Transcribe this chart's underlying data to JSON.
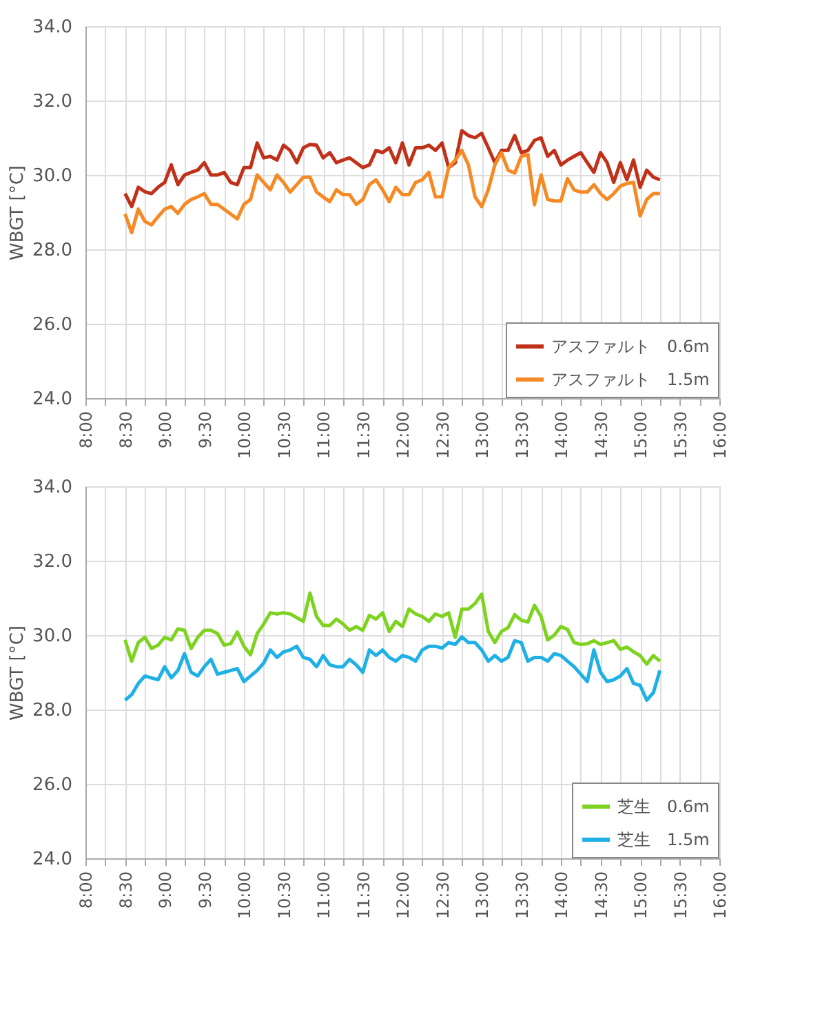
{
  "chart_data": [
    {
      "type": "line",
      "ylabel": "WBGT [°C]",
      "x": [
        8.5,
        8.5833,
        8.6667,
        8.75,
        8.8333,
        8.9167,
        9,
        9.0833,
        9.1667,
        9.25,
        9.3333,
        9.4167,
        9.5,
        9.5833,
        9.6667,
        9.75,
        9.8333,
        9.9167,
        10,
        10.0833,
        10.1667,
        10.25,
        10.3333,
        10.4167,
        10.5,
        10.5833,
        10.6667,
        10.75,
        10.8333,
        10.9167,
        11,
        11.0833,
        11.1667,
        11.25,
        11.3333,
        11.4167,
        11.5,
        11.5833,
        11.6667,
        11.75,
        11.8333,
        11.9167,
        12,
        12.0833,
        12.1667,
        12.25,
        12.3333,
        12.4167,
        12.5,
        12.5833,
        12.6667,
        12.75,
        12.8333,
        12.9167,
        13,
        13.0833,
        13.1667,
        13.25,
        13.3333,
        13.4167,
        13.5,
        13.5833,
        13.6667,
        13.75,
        13.8333,
        13.9167,
        14,
        14.0833,
        14.1667,
        14.25,
        14.3333,
        14.4167,
        14.5,
        14.5833,
        14.6667,
        14.75,
        14.8333,
        14.9167,
        15,
        15.0833,
        15.1667,
        15.25
      ],
      "series": [
        {
          "name": "アスファルト　0.6m",
          "color": "#c0311a",
          "values": [
            29.5,
            29.15,
            29.67,
            29.55,
            29.5,
            29.67,
            29.8,
            30.27,
            29.74,
            30.0,
            30.07,
            30.13,
            30.33,
            30.0,
            30.0,
            30.07,
            29.8,
            29.74,
            30.2,
            30.2,
            30.86,
            30.46,
            30.5,
            30.4,
            30.8,
            30.66,
            30.33,
            30.73,
            30.82,
            30.8,
            30.46,
            30.6,
            30.33,
            30.4,
            30.46,
            30.33,
            30.2,
            30.27,
            30.66,
            30.6,
            30.73,
            30.33,
            30.86,
            30.27,
            30.73,
            30.73,
            30.8,
            30.66,
            30.86,
            30.2,
            30.33,
            31.19,
            31.06,
            31.0,
            31.12,
            30.73,
            30.33,
            30.66,
            30.66,
            31.06,
            30.6,
            30.66,
            30.93,
            31.0,
            30.5,
            30.66,
            30.27,
            30.4,
            30.5,
            30.6,
            30.33,
            30.07,
            30.6,
            30.33,
            29.8,
            30.33,
            29.87,
            30.4,
            29.67,
            30.13,
            29.94,
            29.87
          ]
        },
        {
          "name": "アスファルト　1.5m",
          "color": "#f58a25",
          "values": [
            28.95,
            28.45,
            29.08,
            28.75,
            28.66,
            28.88,
            29.08,
            29.15,
            28.97,
            29.21,
            29.34,
            29.41,
            29.5,
            29.21,
            29.21,
            29.08,
            28.95,
            28.82,
            29.21,
            29.34,
            30.0,
            29.8,
            29.6,
            30.0,
            29.8,
            29.54,
            29.74,
            29.94,
            29.94,
            29.54,
            29.41,
            29.28,
            29.6,
            29.47,
            29.47,
            29.21,
            29.34,
            29.74,
            29.87,
            29.6,
            29.28,
            29.67,
            29.47,
            29.47,
            29.8,
            29.87,
            30.07,
            29.41,
            29.41,
            30.2,
            30.4,
            30.66,
            30.27,
            29.41,
            29.15,
            29.6,
            30.27,
            30.6,
            30.13,
            30.05,
            30.5,
            30.55,
            29.2,
            30.0,
            29.34,
            29.3,
            29.3,
            29.9,
            29.6,
            29.54,
            29.54,
            29.74,
            29.5,
            29.34,
            29.5,
            29.7,
            29.77,
            29.8,
            28.9,
            29.34,
            29.5,
            29.5
          ]
        }
      ],
      "ylim": [
        24,
        34
      ],
      "yticks": [
        {
          "value": 24,
          "label": "24.0"
        },
        {
          "value": 26,
          "label": "26.0"
        },
        {
          "value": 28,
          "label": "28.0"
        },
        {
          "value": 30,
          "label": "30.0"
        },
        {
          "value": 32,
          "label": "32.0"
        },
        {
          "value": 34,
          "label": "34.0"
        }
      ],
      "xlim": [
        8,
        16
      ],
      "xticks": [
        {
          "value": 8,
          "label": "8:00"
        },
        {
          "value": 8.25,
          "label": null
        },
        {
          "value": 8.5,
          "label": "8:30"
        },
        {
          "value": 8.75,
          "label": null
        },
        {
          "value": 9,
          "label": "9:00"
        },
        {
          "value": 9.25,
          "label": null
        },
        {
          "value": 9.5,
          "label": "9:30"
        },
        {
          "value": 9.75,
          "label": null
        },
        {
          "value": 10,
          "label": "10:00"
        },
        {
          "value": 10.25,
          "label": null
        },
        {
          "value": 10.5,
          "label": "10:30"
        },
        {
          "value": 10.75,
          "label": null
        },
        {
          "value": 11,
          "label": "11:00"
        },
        {
          "value": 11.25,
          "label": null
        },
        {
          "value": 11.5,
          "label": "11:30"
        },
        {
          "value": 11.75,
          "label": null
        },
        {
          "value": 12,
          "label": "12:00"
        },
        {
          "value": 12.25,
          "label": null
        },
        {
          "value": 12.5,
          "label": "12:30"
        },
        {
          "value": 12.75,
          "label": null
        },
        {
          "value": 13,
          "label": "13:00"
        },
        {
          "value": 13.25,
          "label": null
        },
        {
          "value": 13.5,
          "label": "13:30"
        },
        {
          "value": 13.75,
          "label": null
        },
        {
          "value": 14,
          "label": "14:00"
        },
        {
          "value": 14.25,
          "label": null
        },
        {
          "value": 14.5,
          "label": "14:30"
        },
        {
          "value": 14.75,
          "label": null
        },
        {
          "value": 15,
          "label": "15:00"
        },
        {
          "value": 15.25,
          "label": null
        },
        {
          "value": 15.5,
          "label": "15:30"
        },
        {
          "value": 15.75,
          "label": null
        },
        {
          "value": 16,
          "label": "16:00"
        }
      ],
      "grid": true,
      "legend": "bottom right",
      "marker": "none",
      "line_style": "solid"
    },
    {
      "type": "line",
      "ylabel": "WBGT [°C]",
      "x": [
        8.5,
        8.5833,
        8.6667,
        8.75,
        8.8333,
        8.9167,
        9,
        9.0833,
        9.1667,
        9.25,
        9.3333,
        9.4167,
        9.5,
        9.5833,
        9.6667,
        9.75,
        9.8333,
        9.9167,
        10,
        10.0833,
        10.1667,
        10.25,
        10.3333,
        10.4167,
        10.5,
        10.5833,
        10.6667,
        10.75,
        10.8333,
        10.9167,
        11,
        11.0833,
        11.1667,
        11.25,
        11.3333,
        11.4167,
        11.5,
        11.5833,
        11.6667,
        11.75,
        11.8333,
        11.9167,
        12,
        12.0833,
        12.1667,
        12.25,
        12.3333,
        12.4167,
        12.5,
        12.5833,
        12.6667,
        12.75,
        12.8333,
        12.9167,
        13,
        13.0833,
        13.1667,
        13.25,
        13.3333,
        13.4167,
        13.5,
        13.5833,
        13.6667,
        13.75,
        13.8333,
        13.9167,
        14,
        14.0833,
        14.1667,
        14.25,
        14.3333,
        14.4167,
        14.5,
        14.5833,
        14.6667,
        14.75,
        14.8333,
        14.9167,
        15,
        15.0833,
        15.1667,
        15.25
      ],
      "series": [
        {
          "name": "芝生　0.6m",
          "color": "#7ed321",
          "values": [
            29.87,
            29.3,
            29.8,
            29.94,
            29.64,
            29.73,
            29.94,
            29.87,
            30.17,
            30.13,
            29.64,
            29.94,
            30.13,
            30.13,
            30.04,
            29.73,
            29.77,
            30.08,
            29.7,
            29.47,
            30.04,
            30.3,
            30.6,
            30.57,
            30.6,
            30.57,
            30.47,
            30.37,
            31.13,
            30.5,
            30.26,
            30.26,
            30.43,
            30.3,
            30.13,
            30.23,
            30.13,
            30.53,
            30.43,
            30.6,
            30.1,
            30.37,
            30.23,
            30.7,
            30.57,
            30.5,
            30.37,
            30.57,
            30.5,
            30.6,
            29.94,
            30.7,
            30.7,
            30.85,
            31.1,
            30.1,
            29.8,
            30.1,
            30.2,
            30.55,
            30.4,
            30.35,
            30.8,
            30.5,
            29.87,
            30.0,
            30.23,
            30.15,
            29.8,
            29.75,
            29.77,
            29.85,
            29.75,
            29.8,
            29.85,
            29.62,
            29.68,
            29.55,
            29.45,
            29.22,
            29.45,
            29.3
          ]
        },
        {
          "name": "芝生　1.5m",
          "color": "#1fb0e6",
          "values": [
            28.25,
            28.4,
            28.7,
            28.9,
            28.85,
            28.8,
            29.15,
            28.85,
            29.05,
            29.5,
            29.0,
            28.9,
            29.15,
            29.35,
            28.95,
            29.0,
            29.05,
            29.1,
            28.75,
            28.9,
            29.05,
            29.25,
            29.6,
            29.4,
            29.55,
            29.6,
            29.7,
            29.4,
            29.35,
            29.15,
            29.45,
            29.2,
            29.15,
            29.15,
            29.35,
            29.2,
            29.0,
            29.6,
            29.45,
            29.6,
            29.4,
            29.3,
            29.45,
            29.4,
            29.3,
            29.6,
            29.7,
            29.7,
            29.65,
            29.8,
            29.75,
            29.95,
            29.8,
            29.8,
            29.6,
            29.3,
            29.45,
            29.3,
            29.4,
            29.85,
            29.8,
            29.3,
            29.4,
            29.4,
            29.3,
            29.5,
            29.45,
            29.3,
            29.15,
            28.95,
            28.75,
            29.6,
            29.0,
            28.75,
            28.8,
            28.9,
            29.1,
            28.7,
            28.65,
            28.25,
            28.45,
            29.05
          ]
        }
      ],
      "ylim": [
        24,
        34
      ],
      "yticks": [
        {
          "value": 24,
          "label": "24.0"
        },
        {
          "value": 26,
          "label": "26.0"
        },
        {
          "value": 28,
          "label": "28.0"
        },
        {
          "value": 30,
          "label": "30.0"
        },
        {
          "value": 32,
          "label": "32.0"
        },
        {
          "value": 34,
          "label": "34.0"
        }
      ],
      "xlim": [
        8,
        16
      ],
      "xticks": [
        {
          "value": 8,
          "label": "8:00"
        },
        {
          "value": 8.25,
          "label": null
        },
        {
          "value": 8.5,
          "label": "8:30"
        },
        {
          "value": 8.75,
          "label": null
        },
        {
          "value": 9,
          "label": "9:00"
        },
        {
          "value": 9.25,
          "label": null
        },
        {
          "value": 9.5,
          "label": "9:30"
        },
        {
          "value": 9.75,
          "label": null
        },
        {
          "value": 10,
          "label": "10:00"
        },
        {
          "value": 10.25,
          "label": null
        },
        {
          "value": 10.5,
          "label": "10:30"
        },
        {
          "value": 10.75,
          "label": null
        },
        {
          "value": 11,
          "label": "11:00"
        },
        {
          "value": 11.25,
          "label": null
        },
        {
          "value": 11.5,
          "label": "11:30"
        },
        {
          "value": 11.75,
          "label": null
        },
        {
          "value": 12,
          "label": "12:00"
        },
        {
          "value": 12.25,
          "label": null
        },
        {
          "value": 12.5,
          "label": "12:30"
        },
        {
          "value": 12.75,
          "label": null
        },
        {
          "value": 13,
          "label": "13:00"
        },
        {
          "value": 13.25,
          "label": null
        },
        {
          "value": 13.5,
          "label": "13:30"
        },
        {
          "value": 13.75,
          "label": null
        },
        {
          "value": 14,
          "label": "14:00"
        },
        {
          "value": 14.25,
          "label": null
        },
        {
          "value": 14.5,
          "label": "14:30"
        },
        {
          "value": 14.75,
          "label": null
        },
        {
          "value": 15,
          "label": "15:00"
        },
        {
          "value": 15.25,
          "label": null
        },
        {
          "value": 15.5,
          "label": "15:30"
        },
        {
          "value": 15.75,
          "label": null
        },
        {
          "value": 16,
          "label": "16:00"
        }
      ],
      "grid": true,
      "legend": "bottom right",
      "marker": "none",
      "line_style": "solid"
    }
  ]
}
